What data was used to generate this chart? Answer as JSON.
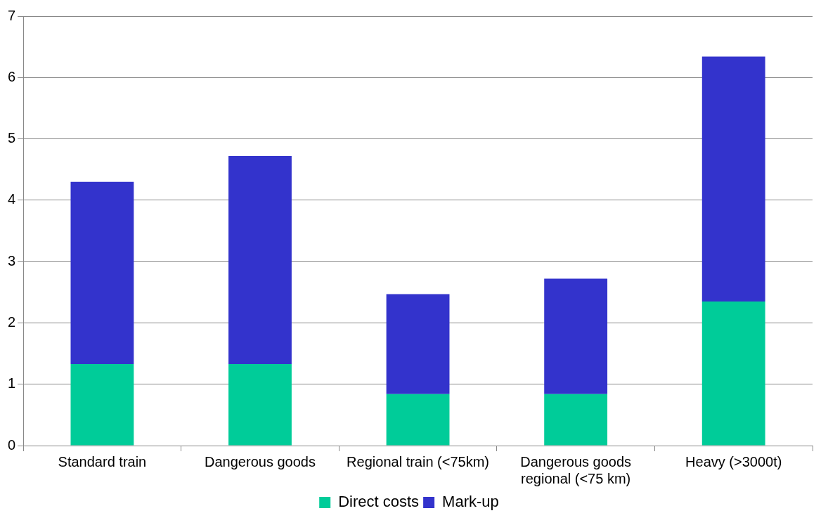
{
  "chart_data": {
    "type": "bar",
    "stacked": true,
    "categories": [
      "Standard train",
      "Dangerous goods",
      "Regional train (<75km)",
      "Dangerous goods regional (<75 km)",
      "Heavy (>3000t)"
    ],
    "series": [
      {
        "name": "Direct costs",
        "color": "#00cc99",
        "values": [
          1.33,
          1.33,
          0.84,
          0.84,
          2.35
        ]
      },
      {
        "name": "Mark-up",
        "color": "#3333cc",
        "values": [
          2.97,
          3.39,
          1.63,
          1.88,
          3.99
        ]
      }
    ],
    "ylim": [
      0,
      7
    ],
    "yticks": [
      0,
      1,
      2,
      3,
      4,
      5,
      6,
      7
    ],
    "grid": "y",
    "legend": "bottom"
  }
}
